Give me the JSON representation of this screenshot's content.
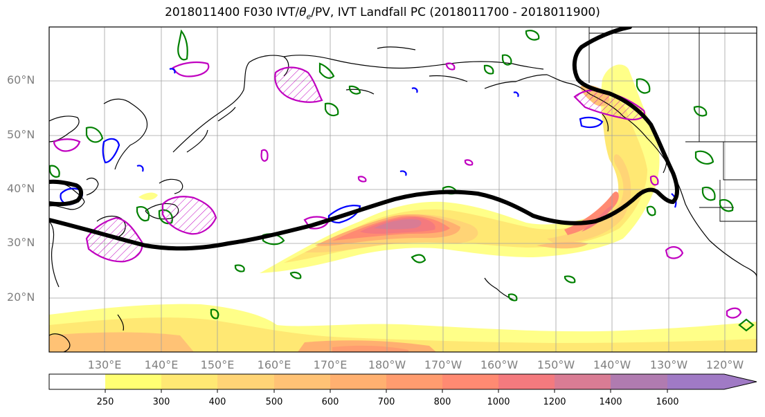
{
  "title": {
    "date": "2018011400",
    "forecast": "F030",
    "fields_prefix": "IVT/",
    "theta": "θ",
    "theta_sub": "e",
    "fields_suffix": "/PV, IVT Landfall PC (2018011700 - 2018011900)"
  },
  "map": {
    "lat_labels": [
      "60°N",
      "50°N",
      "40°N",
      "30°N",
      "20°N"
    ],
    "lon_labels": [
      "130°E",
      "140°E",
      "150°E",
      "160°E",
      "170°E",
      "180°W",
      "170°W",
      "160°W",
      "150°W",
      "140°W",
      "130°W",
      "120°W"
    ],
    "colors": {
      "land_coast": "#000000",
      "grid": "#a0a0a0",
      "contour_green": "#008000",
      "contour_magenta": "#c000c0",
      "contour_blue": "#0000ff",
      "pc_line": "#000000"
    }
  },
  "colorbar": {
    "ticks": [
      "250",
      "300",
      "400",
      "500",
      "600",
      "700",
      "800",
      "1000",
      "1200",
      "1400",
      "1600"
    ],
    "colors": [
      "#ffffff",
      "#ffff73",
      "#ffe873",
      "#ffd476",
      "#ffc275",
      "#ffb070",
      "#ff9c6f",
      "#ff8a72",
      "#f47a7e",
      "#d97c94",
      "#b07bb0",
      "#a07ac5"
    ],
    "extend": "max"
  }
}
